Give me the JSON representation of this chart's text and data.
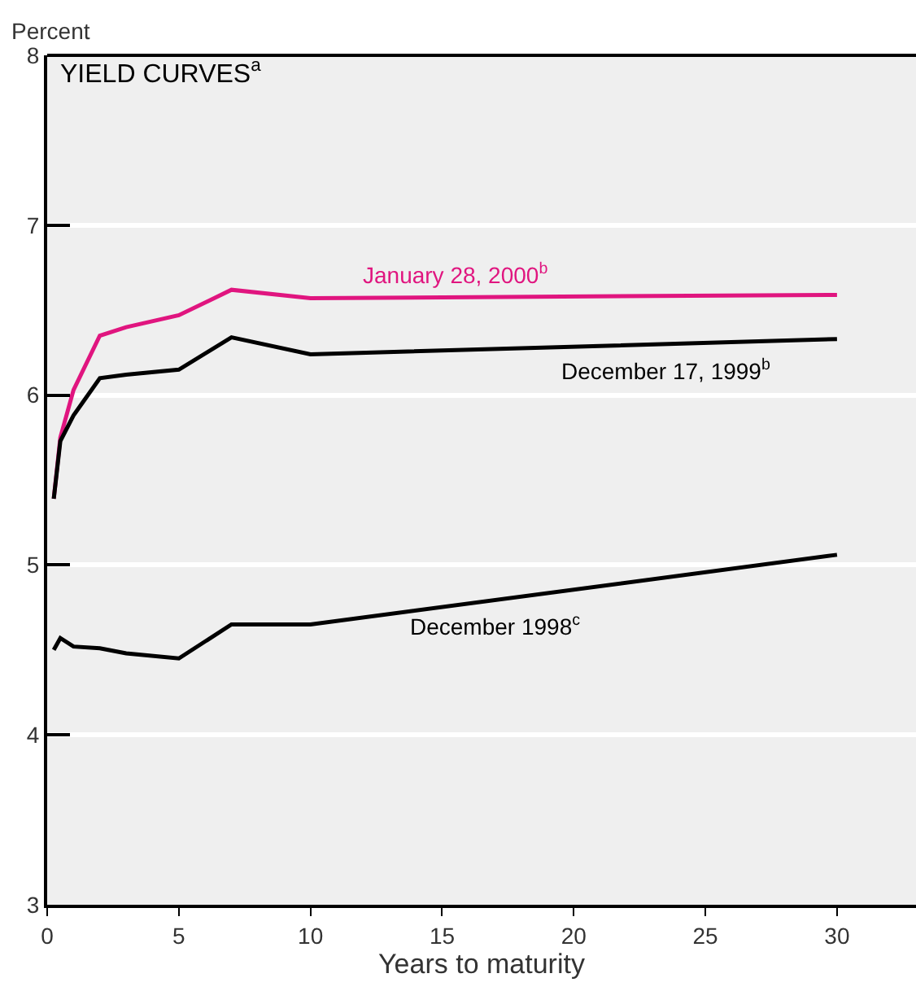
{
  "chart_data": {
    "type": "line",
    "title": "YIELD CURVES$^{a}$",
    "ylabel": "Percent",
    "xlabel": "Years to maturity",
    "x": [
      0.25,
      0.5,
      1,
      2,
      3,
      5,
      7,
      10,
      30
    ],
    "series": [
      {
        "name": "January 28, 2000$^{b}$",
        "color": "#e0157f",
        "values": [
          5.39,
          5.75,
          6.03,
          6.35,
          6.4,
          6.47,
          6.62,
          6.57,
          6.59
        ]
      },
      {
        "name": "December 17, 1999$^{b}$",
        "color": "#000000",
        "values": [
          5.39,
          5.73,
          5.88,
          6.1,
          6.12,
          6.15,
          6.34,
          6.24,
          6.33
        ]
      },
      {
        "name": "December 1998$^{c}$",
        "color": "#000000",
        "values": [
          4.5,
          4.57,
          4.52,
          4.51,
          4.48,
          4.45,
          4.65,
          4.65,
          5.06
        ]
      }
    ],
    "xlim": [
      0,
      33
    ],
    "xticks": [
      0,
      5,
      10,
      15,
      20,
      25,
      30
    ],
    "ylim": [
      3,
      8
    ],
    "yticks": [
      3,
      4,
      5,
      6,
      7,
      8
    ],
    "grid": "y",
    "marker": "none",
    "line_style": "solid",
    "legend": false
  }
}
